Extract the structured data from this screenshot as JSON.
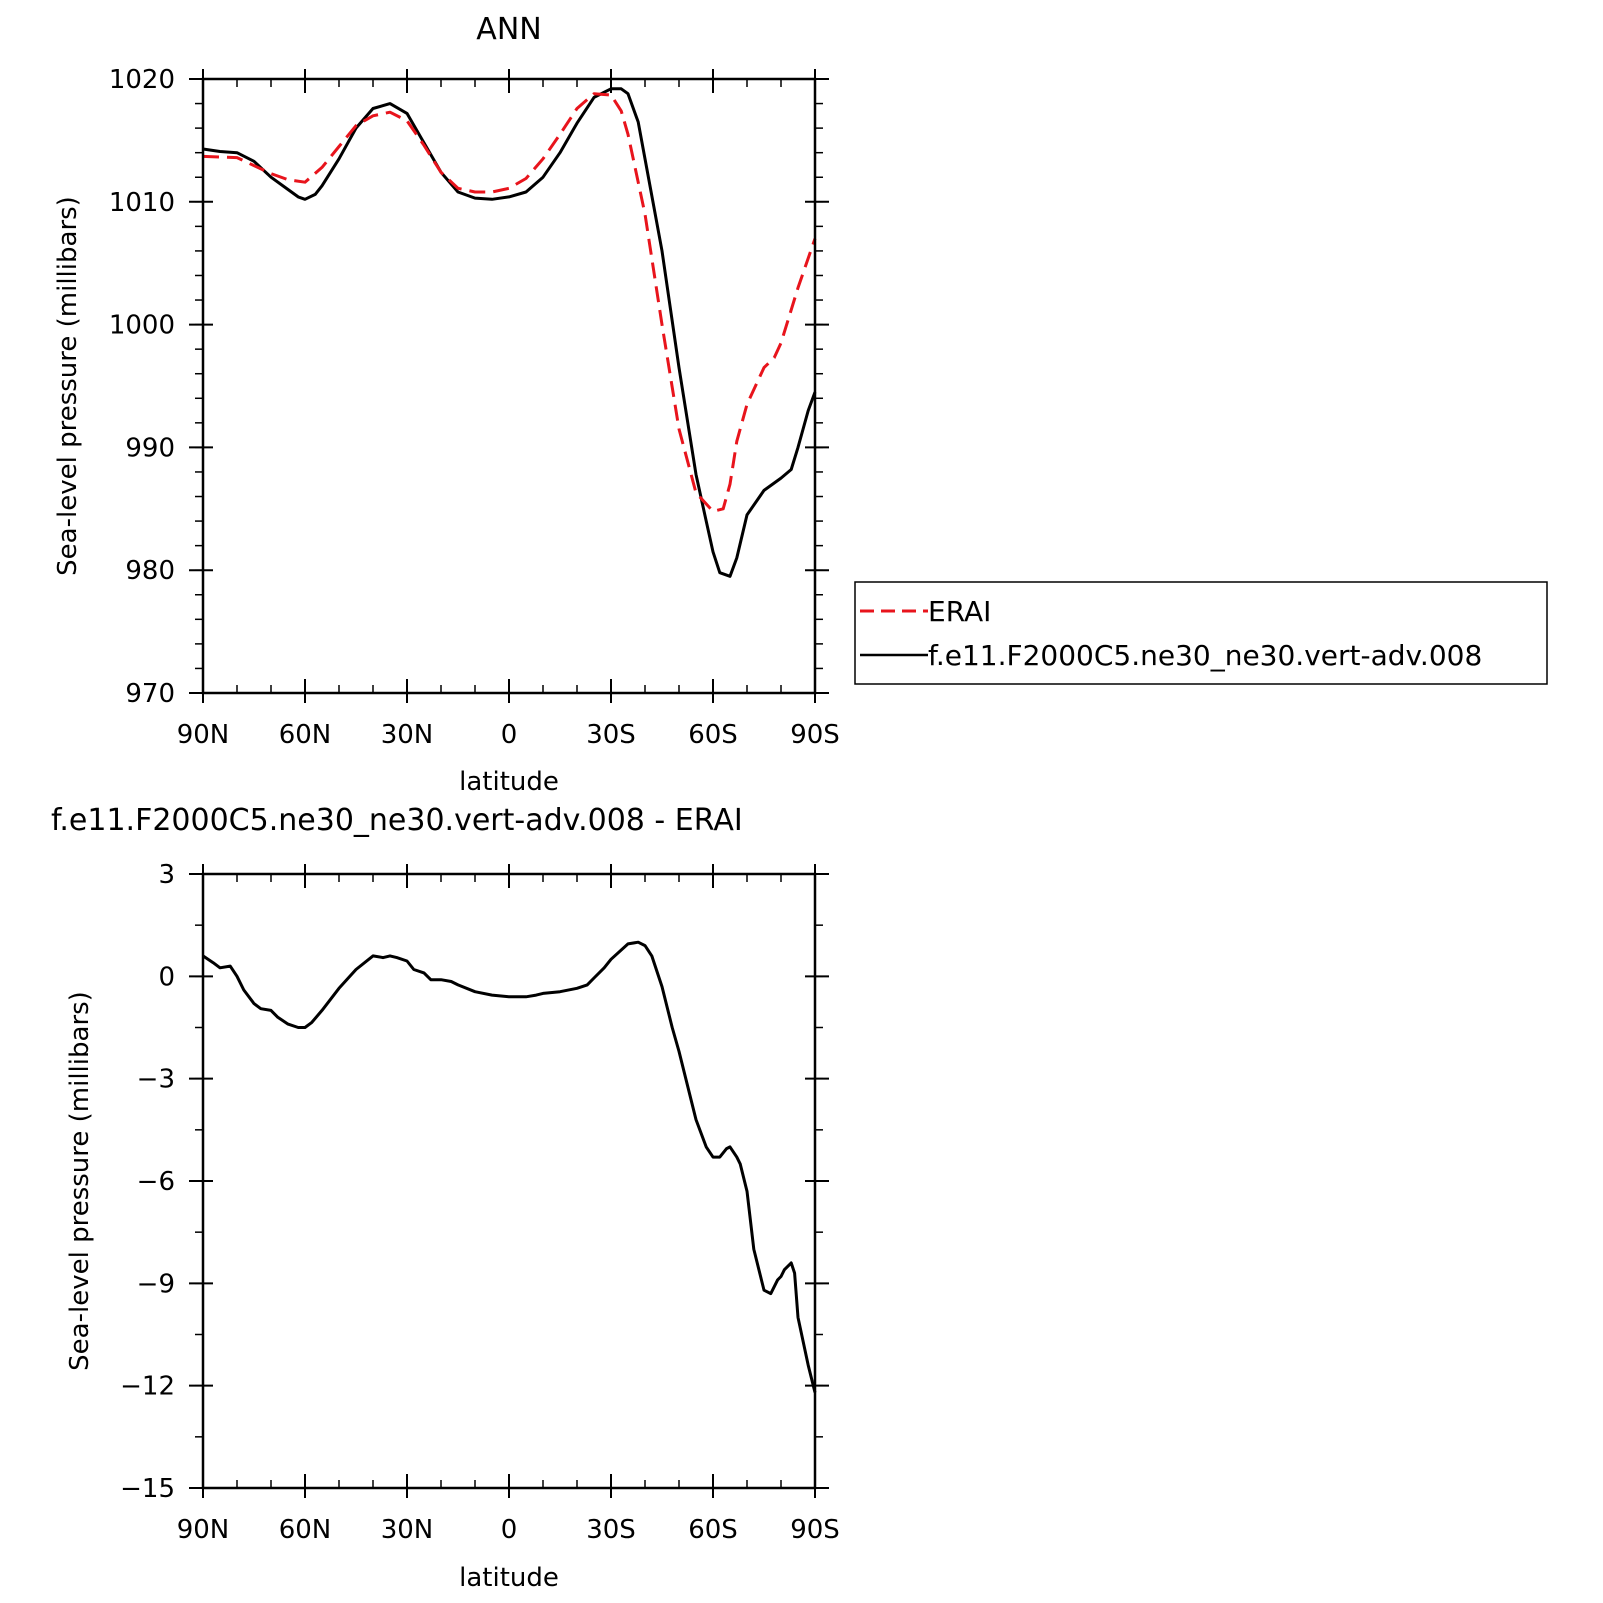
{
  "chart_data": [
    {
      "type": "line",
      "title": "ANN",
      "xlabel": "latitude",
      "ylabel": "Sea-level pressure (millibars)",
      "xlim": [
        90,
        -90
      ],
      "ylim": [
        970,
        1020
      ],
      "x_ticks": [
        90,
        60,
        30,
        0,
        -30,
        -60,
        -90
      ],
      "x_tick_labels": [
        "90N",
        "60N",
        "30N",
        "0",
        "30S",
        "60S",
        "90S"
      ],
      "y_ticks": [
        970,
        980,
        990,
        1000,
        1010,
        1020
      ],
      "y_tick_labels": [
        "970",
        "980",
        "990",
        "1000",
        "1010",
        "1020"
      ],
      "grid": false,
      "legend_position": "right",
      "series": [
        {
          "name": "ERAI",
          "color": "#e8141c",
          "dash": true,
          "x": [
            90,
            80,
            70,
            65,
            60,
            55,
            50,
            45,
            40,
            35,
            30,
            25,
            20,
            15,
            10,
            5,
            0,
            -5,
            -10,
            -15,
            -20,
            -25,
            -30,
            -33,
            -35,
            -40,
            -45,
            -50,
            -55,
            -60,
            -63,
            -65,
            -67,
            -70,
            -75,
            -78,
            -80,
            -85,
            -90
          ],
          "y": [
            1013.7,
            1013.6,
            1012.3,
            1011.8,
            1011.6,
            1012.8,
            1014.5,
            1016.2,
            1017.0,
            1017.3,
            1016.6,
            1014.6,
            1012.4,
            1011.1,
            1010.8,
            1010.8,
            1011.1,
            1011.9,
            1013.5,
            1015.5,
            1017.6,
            1018.8,
            1018.7,
            1017.4,
            1015.5,
            1009.0,
            1000.0,
            991.5,
            986.3,
            984.8,
            985.0,
            987.0,
            990.5,
            993.5,
            996.5,
            997.3,
            998.5,
            1003.0,
            1007.0
          ]
        },
        {
          "name": "f.e11.F2000C5.ne30_ne30.vert-adv.008",
          "color": "#000000",
          "dash": false,
          "x": [
            90,
            85,
            80,
            75,
            70,
            65,
            62,
            60,
            57,
            55,
            50,
            45,
            40,
            35,
            30,
            25,
            20,
            15,
            10,
            5,
            0,
            -5,
            -10,
            -15,
            -20,
            -25,
            -30,
            -33,
            -35,
            -38,
            -40,
            -45,
            -50,
            -55,
            -58,
            -60,
            -62,
            -65,
            -67,
            -70,
            -75,
            -80,
            -83,
            -85,
            -88,
            -90
          ],
          "y": [
            1014.3,
            1014.1,
            1014.0,
            1013.3,
            1012.0,
            1011.0,
            1010.4,
            1010.2,
            1010.6,
            1011.3,
            1013.5,
            1016.0,
            1017.6,
            1018.0,
            1017.2,
            1014.8,
            1012.4,
            1010.8,
            1010.3,
            1010.2,
            1010.4,
            1010.8,
            1012.0,
            1014.0,
            1016.4,
            1018.5,
            1019.2,
            1019.2,
            1018.8,
            1016.5,
            1013.5,
            1006.0,
            996.5,
            987.8,
            984.0,
            981.5,
            979.8,
            979.5,
            981.0,
            984.5,
            986.5,
            987.5,
            988.2,
            990.0,
            993.0,
            994.5
          ]
        }
      ]
    },
    {
      "type": "line",
      "title": "f.e11.F2000C5.ne30_ne30.vert-adv.008 - ERAI",
      "xlabel": "latitude",
      "ylabel": "Sea-level pressure (millibars)",
      "xlim": [
        90,
        -90
      ],
      "ylim": [
        -15,
        3
      ],
      "x_ticks": [
        90,
        60,
        30,
        0,
        -30,
        -60,
        -90
      ],
      "x_tick_labels": [
        "90N",
        "60N",
        "30N",
        "0",
        "30S",
        "60S",
        "90S"
      ],
      "y_ticks": [
        -15,
        -12,
        -9,
        -6,
        -3,
        0,
        3
      ],
      "y_tick_labels": [
        "-15",
        "-12",
        "-9",
        "-6",
        "-3",
        "0",
        "3"
      ],
      "grid": false,
      "series": [
        {
          "color": "#000000",
          "dash": false,
          "x": [
            90,
            87,
            85,
            82,
            80,
            78,
            75,
            73,
            70,
            68,
            65,
            62,
            60,
            58,
            55,
            50,
            45,
            40,
            37,
            35,
            33,
            30,
            28,
            25,
            23,
            20,
            17,
            15,
            10,
            5,
            0,
            -5,
            -8,
            -10,
            -15,
            -20,
            -23,
            -25,
            -28,
            -30,
            -35,
            -38,
            -40,
            -42,
            -45,
            -48,
            -50,
            -55,
            -58,
            -60,
            -62,
            -64,
            -65,
            -67,
            -68,
            -70,
            -72,
            -75,
            -77,
            -79,
            -80,
            -81,
            -83,
            -84,
            -85,
            -88,
            -90
          ],
          "y": [
            0.6,
            0.4,
            0.25,
            0.3,
            0.0,
            -0.4,
            -0.8,
            -0.95,
            -1.0,
            -1.2,
            -1.4,
            -1.5,
            -1.5,
            -1.35,
            -1.0,
            -0.35,
            0.2,
            0.6,
            0.55,
            0.6,
            0.55,
            0.45,
            0.2,
            0.1,
            -0.1,
            -0.1,
            -0.15,
            -0.25,
            -0.45,
            -0.55,
            -0.6,
            -0.6,
            -0.55,
            -0.5,
            -0.45,
            -0.35,
            -0.25,
            -0.05,
            0.25,
            0.5,
            0.95,
            1.0,
            0.9,
            0.6,
            -0.3,
            -1.5,
            -2.2,
            -4.2,
            -5.0,
            -5.3,
            -5.3,
            -5.05,
            -5.0,
            -5.3,
            -5.5,
            -6.3,
            -8.0,
            -9.2,
            -9.3,
            -8.9,
            -8.8,
            -8.6,
            -8.4,
            -8.7,
            -10.0,
            -11.4,
            -12.2
          ]
        }
      ]
    }
  ]
}
